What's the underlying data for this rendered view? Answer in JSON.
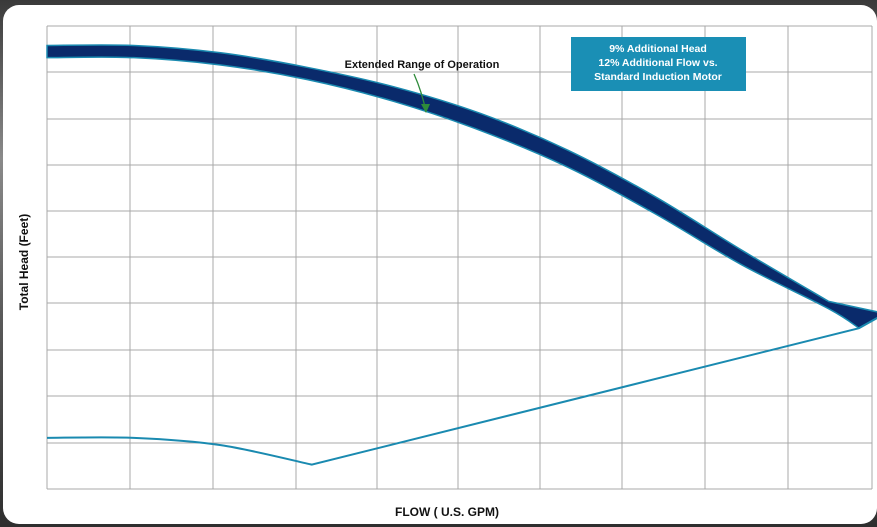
{
  "chart_data": {
    "type": "line",
    "title": "",
    "xlabel": "FLOW ( U.S. GPM)",
    "ylabel": "Total Head (Feet)",
    "xlim": [
      0,
      9.5
    ],
    "ylim": [
      0,
      9.5
    ],
    "grid": true,
    "annotation": "Extended Range of Operation",
    "callout_lines": [
      "9% Additional Head",
      "12% Additional Flow vs.",
      "Standard Induction Motor"
    ],
    "series": [
      {
        "values_extended_upper": [
          [
            0,
            9.1
          ],
          [
            1,
            9.1
          ],
          [
            2,
            8.95
          ],
          [
            3,
            8.65
          ],
          [
            4,
            8.25
          ],
          [
            5,
            7.7
          ],
          [
            6,
            6.95
          ],
          [
            7,
            6.0
          ],
          [
            8,
            4.9
          ],
          [
            9,
            3.85
          ]
        ],
        "values_standard_upper": [
          [
            0,
            8.85
          ],
          [
            1,
            8.85
          ],
          [
            2,
            8.7
          ],
          [
            3,
            8.4
          ],
          [
            4,
            7.95
          ],
          [
            5,
            7.35
          ],
          [
            6,
            6.6
          ],
          [
            7,
            5.65
          ],
          [
            8,
            4.6
          ],
          [
            9,
            3.7
          ],
          [
            9.35,
            3.3
          ]
        ],
        "values_lower": [
          [
            0,
            1.05
          ],
          [
            1,
            1.05
          ],
          [
            2,
            0.9
          ],
          [
            3.05,
            0.5
          ],
          [
            9.35,
            3.3
          ],
          [
            9.65,
            3.6
          ]
        ]
      }
    ],
    "colors": {
      "band_fill": "#0a2a6b",
      "curve_stroke": "#1a8ab0",
      "callout_bg": "#1a8fb5",
      "arrow": "#2e8b3a",
      "grid": "#a8a8a8"
    }
  }
}
